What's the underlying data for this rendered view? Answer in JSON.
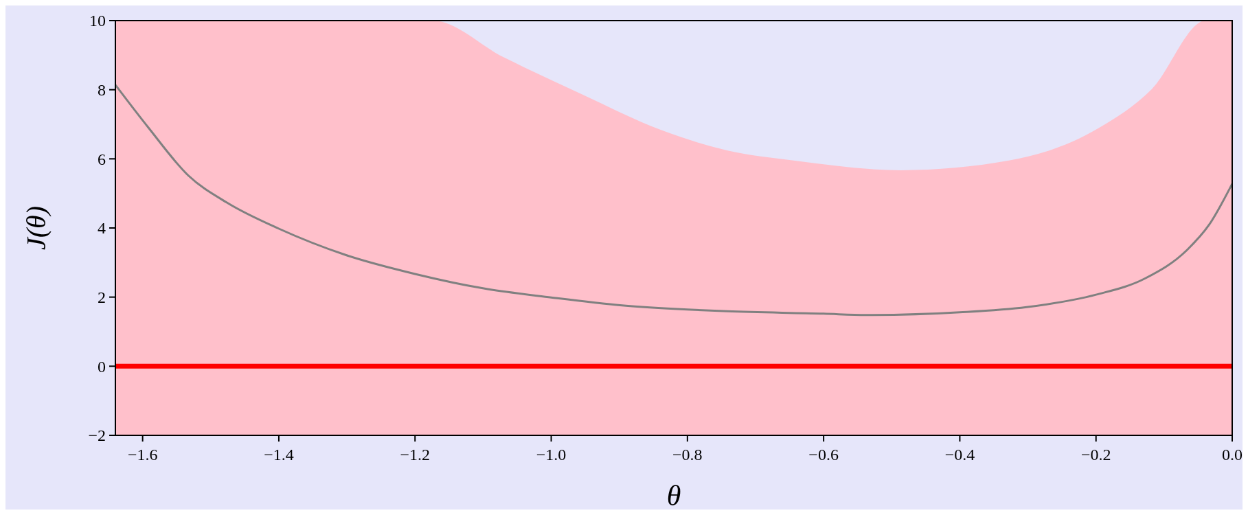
{
  "chart_data": {
    "type": "line",
    "xlabel": "θ",
    "ylabel": "J(θ)",
    "xlim": [
      -1.64,
      0
    ],
    "ylim": [
      -2,
      10
    ],
    "xticks": [
      {
        "value": -1.6,
        "label": "−1.6"
      },
      {
        "value": -1.4,
        "label": "−1.4"
      },
      {
        "value": -1.2,
        "label": "−1.2"
      },
      {
        "value": -1.0,
        "label": "−1.0"
      },
      {
        "value": -0.8,
        "label": "−0.8"
      },
      {
        "value": -0.6,
        "label": "−0.6"
      },
      {
        "value": -0.4,
        "label": "−0.4"
      },
      {
        "value": -0.2,
        "label": "−0.2"
      },
      {
        "value": 0,
        "label": "0.0"
      }
    ],
    "yticks": [
      {
        "value": -2,
        "label": "−2"
      },
      0,
      2,
      4,
      6,
      8,
      10
    ],
    "series": [
      {
        "type": "area",
        "color": "#ffc0cb",
        "x": [
          -1.64,
          -1.174,
          -1.07,
          -0.954,
          -0.838,
          -0.741,
          -0.644,
          -0.486,
          -0.328,
          -0.197,
          -0.118,
          -0.039,
          0
        ],
        "values": [
          10,
          10,
          8.94,
          7.86,
          6.83,
          6.24,
          5.95,
          5.67,
          5.95,
          6.88,
          8.02,
          10,
          10
        ]
      },
      {
        "color": "#808080",
        "x": [
          -1.64,
          -1.591,
          -1.533,
          -1.475,
          -1.4,
          -1.302,
          -1.2,
          -1.099,
          -1.0,
          -0.896,
          -0.8,
          -0.741,
          -0.6,
          -0.538,
          -0.4,
          -0.302,
          -0.2,
          -0.128,
          -0.066,
          -0.034,
          0
        ],
        "values": [
          8.14,
          6.89,
          5.52,
          4.72,
          3.98,
          3.22,
          2.67,
          2.25,
          1.99,
          1.76,
          1.64,
          1.59,
          1.52,
          1.48,
          1.56,
          1.71,
          2.07,
          2.54,
          3.37,
          4.09,
          5.28
        ]
      }
    ],
    "bands": [
      {
        "axis": "y",
        "from": -2,
        "to": 0,
        "color": "#ffc0cb"
      }
    ],
    "ref_lines": [
      {
        "axis": "y",
        "value": 0,
        "color": "#ff0000"
      }
    ],
    "grid": false
  }
}
